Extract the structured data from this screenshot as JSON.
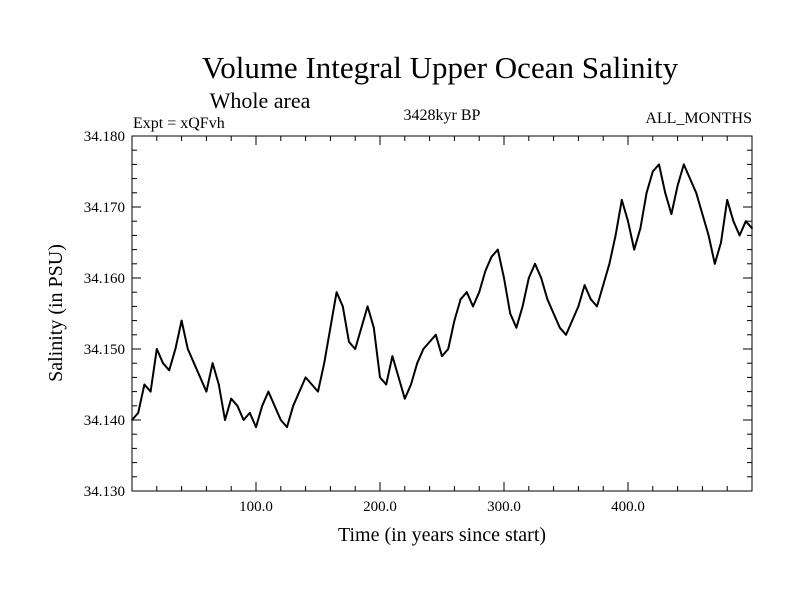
{
  "chart_data": {
    "type": "line",
    "title": "Volume Integral Upper Ocean Salinity",
    "subtitle": "Whole area",
    "experiment": "Expt = xQFvh",
    "period": "3428kyr BP",
    "months": "ALL_MONTHS",
    "xlabel": "Time (in years since start)",
    "ylabel": "Salinity (in PSU)",
    "xlim": [
      0,
      500
    ],
    "ylim": [
      34.13,
      34.18
    ],
    "x_ticks": [
      100,
      200,
      300,
      400
    ],
    "x_tick_labels": [
      "100.0",
      "200.0",
      "300.0",
      "400.0"
    ],
    "y_ticks": [
      34.13,
      34.14,
      34.15,
      34.16,
      34.17,
      34.18
    ],
    "y_tick_labels": [
      "34.130",
      "34.140",
      "34.150",
      "34.160",
      "34.170",
      "34.180"
    ],
    "grid": false,
    "series": [
      {
        "name": "Salinity",
        "color": "#000000",
        "x": [
          0,
          5,
          10,
          15,
          20,
          25,
          30,
          35,
          40,
          45,
          50,
          55,
          60,
          65,
          70,
          75,
          80,
          85,
          90,
          95,
          100,
          105,
          110,
          115,
          120,
          125,
          130,
          135,
          140,
          145,
          150,
          155,
          160,
          165,
          170,
          175,
          180,
          185,
          190,
          195,
          200,
          205,
          210,
          215,
          220,
          225,
          230,
          235,
          240,
          245,
          250,
          255,
          260,
          265,
          270,
          275,
          280,
          285,
          290,
          295,
          300,
          305,
          310,
          315,
          320,
          325,
          330,
          335,
          340,
          345,
          350,
          355,
          360,
          365,
          370,
          375,
          380,
          385,
          390,
          395,
          400,
          405,
          410,
          415,
          420,
          425,
          430,
          435,
          440,
          445,
          450,
          455,
          460,
          465,
          470,
          475,
          480,
          485,
          490,
          495,
          500
        ],
        "values": [
          34.14,
          34.141,
          34.145,
          34.144,
          34.15,
          34.148,
          34.147,
          34.15,
          34.154,
          34.15,
          34.148,
          34.146,
          34.144,
          34.148,
          34.145,
          34.14,
          34.143,
          34.142,
          34.14,
          34.141,
          34.139,
          34.142,
          34.144,
          34.142,
          34.14,
          34.139,
          34.142,
          34.144,
          34.146,
          34.145,
          34.144,
          34.148,
          34.153,
          34.158,
          34.156,
          34.151,
          34.15,
          34.153,
          34.156,
          34.153,
          34.146,
          34.145,
          34.149,
          34.146,
          34.143,
          34.145,
          34.148,
          34.15,
          34.151,
          34.152,
          34.149,
          34.15,
          34.154,
          34.157,
          34.158,
          34.156,
          34.158,
          34.161,
          34.163,
          34.164,
          34.16,
          34.155,
          34.153,
          34.156,
          34.16,
          34.162,
          34.16,
          34.157,
          34.155,
          34.153,
          34.152,
          34.154,
          34.156,
          34.159,
          34.157,
          34.156,
          34.159,
          34.162,
          34.166,
          34.171,
          34.168,
          34.164,
          34.167,
          34.172,
          34.175,
          34.176,
          34.172,
          34.169,
          34.173,
          34.176,
          34.174,
          34.172,
          34.169,
          34.166,
          34.162,
          34.165,
          34.171,
          34.168,
          34.166,
          34.168,
          34.167
        ]
      }
    ]
  }
}
